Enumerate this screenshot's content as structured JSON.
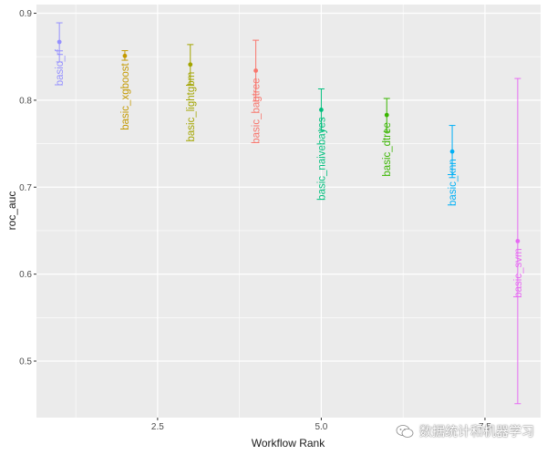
{
  "chart_data": {
    "type": "scatter",
    "xlabel": "Workflow Rank",
    "ylabel": "roc_auc",
    "xlim": [
      0.65,
      8.35
    ],
    "ylim": [
      0.435,
      0.91
    ],
    "x_ticks": [
      2.5,
      5.0,
      7.5
    ],
    "x_tick_labels": [
      "2.5",
      "5.0",
      "7.5"
    ],
    "y_ticks": [
      0.5,
      0.6,
      0.7,
      0.8,
      0.9
    ],
    "y_tick_labels": [
      "0.5",
      "0.6",
      "0.7",
      "0.8",
      "0.9"
    ],
    "background": "#ebebeb",
    "grid_color": "#ffffff",
    "points": [
      {
        "rank": 1,
        "label": "basic_rf",
        "mean": 0.867,
        "lower": 0.844,
        "upper": 0.889,
        "color": "#9590FF"
      },
      {
        "rank": 2,
        "label": "basic_xgboost",
        "mean": 0.851,
        "lower": 0.846,
        "upper": 0.857,
        "color": "#C49A00"
      },
      {
        "rank": 3,
        "label": "basic_lightgbm",
        "mean": 0.841,
        "lower": 0.818,
        "upper": 0.864,
        "color": "#A3A500"
      },
      {
        "rank": 4,
        "label": "basic_bagtree",
        "mean": 0.834,
        "lower": 0.799,
        "upper": 0.869,
        "color": "#F8766D"
      },
      {
        "rank": 5,
        "label": "basic_naivebayes",
        "mean": 0.789,
        "lower": 0.765,
        "upper": 0.813,
        "color": "#00BF7D"
      },
      {
        "rank": 6,
        "label": "basic_dtree",
        "mean": 0.783,
        "lower": 0.764,
        "upper": 0.802,
        "color": "#39B600"
      },
      {
        "rank": 7,
        "label": "basic_knn",
        "mean": 0.741,
        "lower": 0.711,
        "upper": 0.771,
        "color": "#00B0F6"
      },
      {
        "rank": 8,
        "label": "basic_svm",
        "mean": 0.638,
        "lower": 0.451,
        "upper": 0.825,
        "color": "#E76BF3"
      }
    ]
  },
  "watermark": {
    "text": "数据统计和机器学习",
    "icon": "wechat-icon"
  }
}
